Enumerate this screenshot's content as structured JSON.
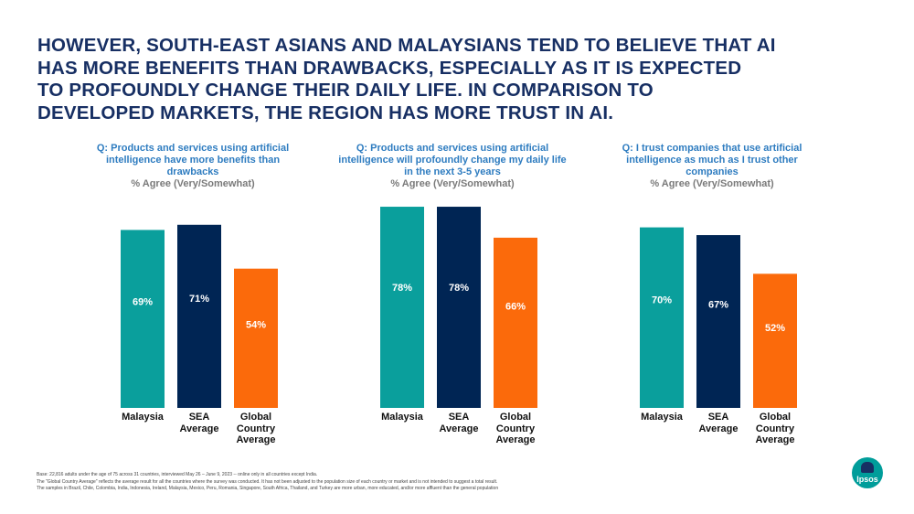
{
  "headline": {
    "lines": [
      "HOWEVER, SOUTH-EAST ASIANS AND MALAYSIANS TEND TO BELIEVE THAT AI",
      "HAS MORE BENEFITS THAN DRAWBACKS, ESPECIALLY AS IT IS EXPECTED",
      "TO PROFOUNDLY CHANGE THEIR DAILY LIFE. IN COMPARISON TO",
      "DEVELOPED MARKETS, THE REGION HAS MORE TRUST IN AI."
    ]
  },
  "colors": {
    "malaysia": "#0a9f9c",
    "sea_average": "#002554",
    "global_country_average": "#fb6a0b",
    "headline": "#172f63",
    "question": "#2e7cc0"
  },
  "chart_data": [
    {
      "type": "bar",
      "question_lines": [
        "Q: Products and services using artificial",
        "intelligence have more benefits than",
        "drawbacks"
      ],
      "metric": "% Agree (Very/Somewhat)",
      "categories": [
        "Malaysia",
        "SEA Average",
        "Global Country Average"
      ],
      "category_lines": [
        [
          "Malaysia"
        ],
        [
          "SEA",
          "Average"
        ],
        [
          "Global",
          "Country",
          "Average"
        ]
      ],
      "values": [
        69,
        71,
        54
      ],
      "value_labels": [
        "69%",
        "71%",
        "54%"
      ],
      "ylim": [
        0,
        100
      ],
      "grid": false
    },
    {
      "type": "bar",
      "question_lines": [
        "Q: Products and services using artificial",
        "intelligence will profoundly change my daily life",
        "in the next 3-5 years"
      ],
      "metric": "% Agree (Very/Somewhat)",
      "categories": [
        "Malaysia",
        "SEA Average",
        "Global Country Average"
      ],
      "category_lines": [
        [
          "Malaysia"
        ],
        [
          "SEA",
          "Average"
        ],
        [
          "Global",
          "Country",
          "Average"
        ]
      ],
      "values": [
        78,
        78,
        66
      ],
      "value_labels": [
        "78%",
        "78%",
        "66%"
      ],
      "ylim": [
        0,
        100
      ],
      "grid": false
    },
    {
      "type": "bar",
      "question_lines": [
        "Q: I trust companies that use artificial",
        "intelligence as much as I trust other",
        "companies"
      ],
      "metric": "% Agree (Very/Somewhat)",
      "categories": [
        "Malaysia",
        "SEA Average",
        "Global Country Average"
      ],
      "category_lines": [
        [
          "Malaysia"
        ],
        [
          "SEA",
          "Average"
        ],
        [
          "Global",
          "Country",
          "Average"
        ]
      ],
      "values": [
        70,
        67,
        52
      ],
      "value_labels": [
        "70%",
        "67%",
        "52%"
      ],
      "ylim": [
        0,
        100
      ],
      "grid": false
    }
  ],
  "footnotes": [
    "Base: 22,816 adults under the age of 75 across 31 countries, interviewed May 26 – June 9, 2023 -- online only in all countries except India.",
    "The \"Global Country Average\" reflects the average result for all the countries where the survey was conducted. It has not been adjusted to the population size of each country or market and is not intended to suggest a total result.",
    "The samples in Brazil, Chile, Colombia, India, Indonesia, Ireland, Malaysia, Mexico, Peru, Romania, Singapore, South Africa, Thailand, and Turkey are more urban, more educated, and/or more affluent than the general population"
  ],
  "logo": {
    "text": "Ipsos"
  }
}
